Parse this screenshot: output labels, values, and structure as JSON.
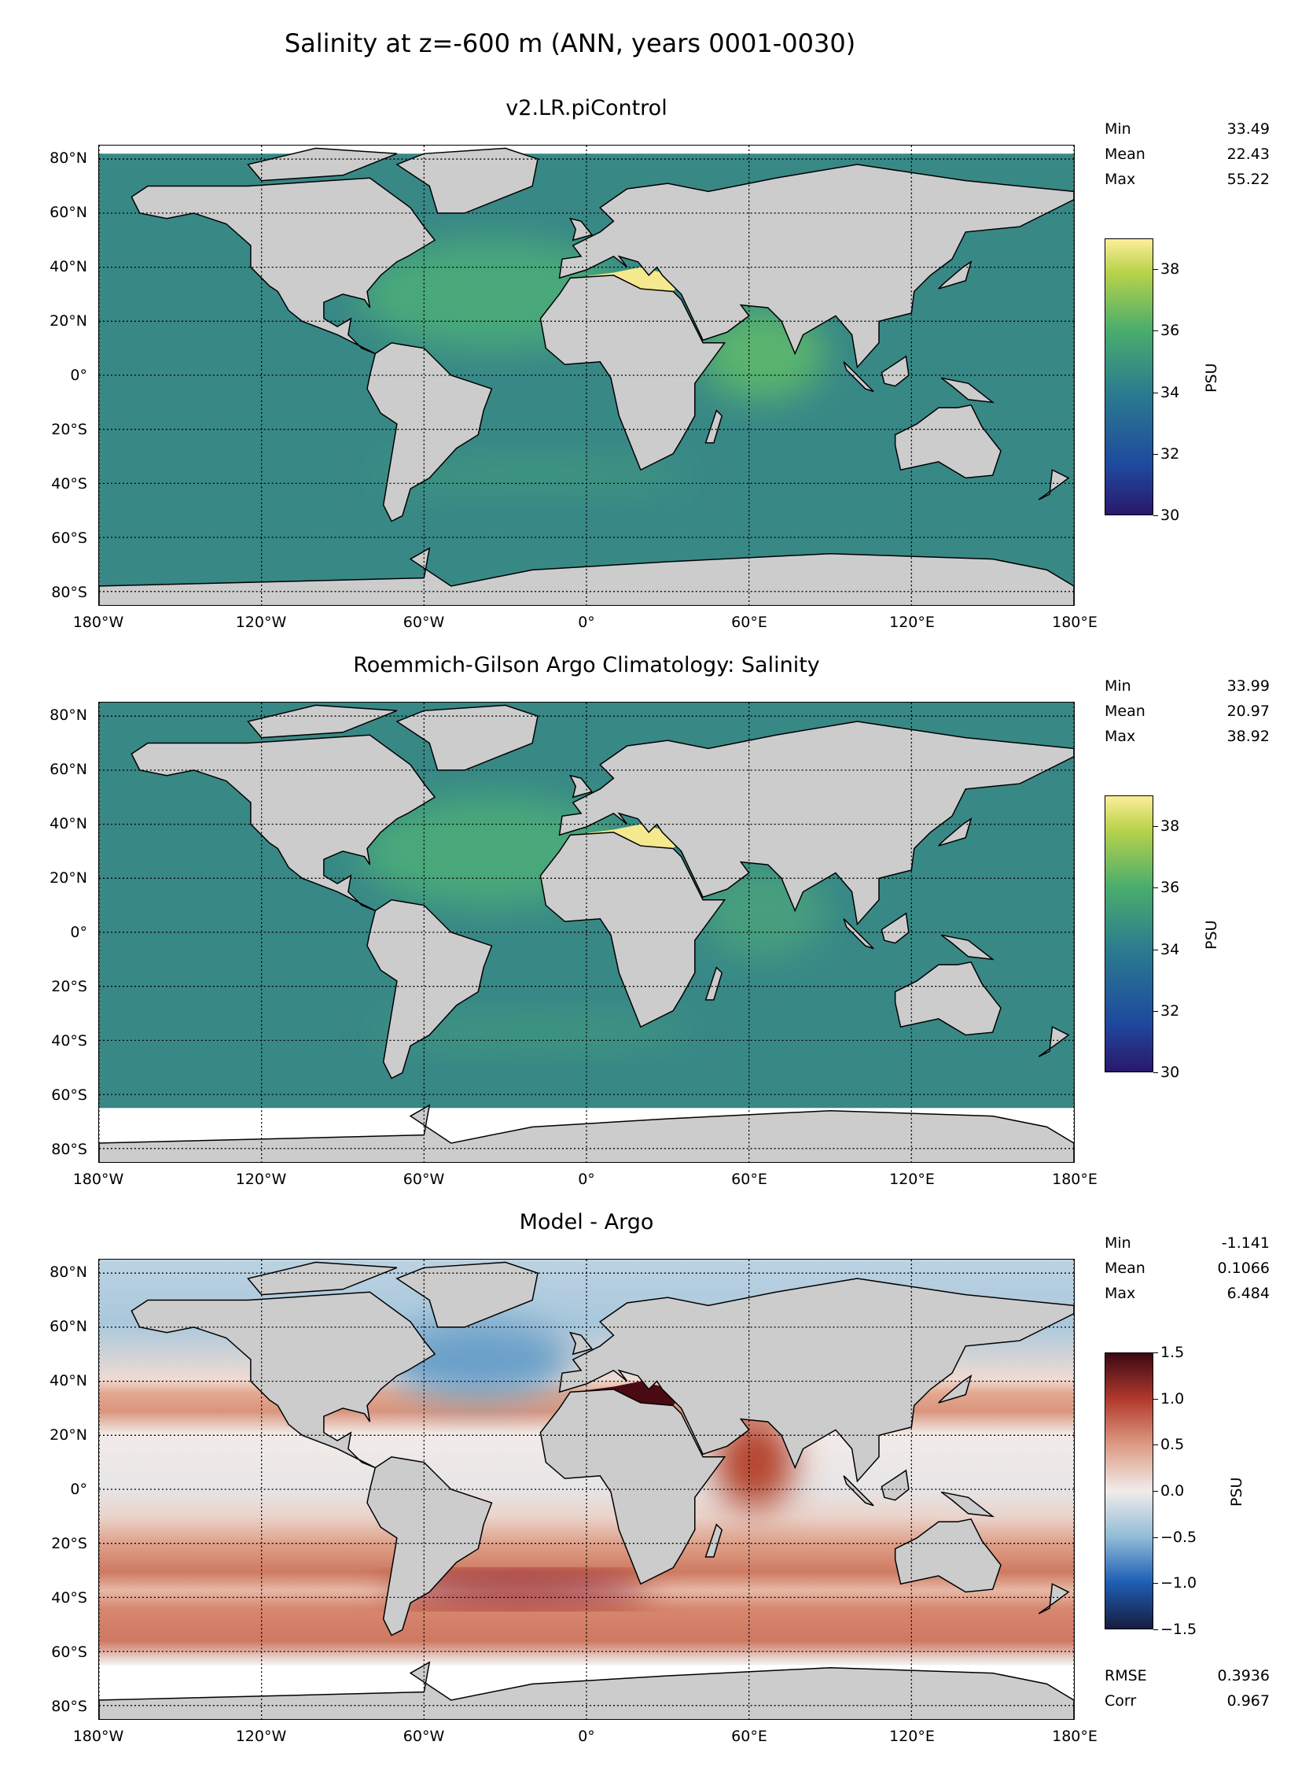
{
  "chart_data": {
    "type": "heatmap",
    "title": "Salinity at z=-600 m (ANN, years 0001-0030)",
    "x_ticks": [
      "180°W",
      "120°W",
      "60°W",
      "0°",
      "60°E",
      "120°E",
      "180°E"
    ],
    "x_tick_values": [
      -180,
      -120,
      -60,
      0,
      60,
      120,
      180
    ],
    "y_ticks": [
      "80°N",
      "60°N",
      "40°N",
      "20°N",
      "0°",
      "20°S",
      "40°S",
      "60°S",
      "80°S"
    ],
    "y_tick_values": [
      80,
      60,
      40,
      20,
      0,
      -20,
      -40,
      -60,
      -80
    ],
    "lat_range": [
      -85,
      85
    ],
    "lon_range": [
      -180,
      180
    ],
    "grid": true,
    "panels": [
      {
        "title": "v2.LR.piControl",
        "stats": [
          {
            "label": "Min",
            "value": "33.49"
          },
          {
            "label": "Mean",
            "value": "22.43"
          },
          {
            "label": "Max",
            "value": "55.22"
          }
        ],
        "colorbar": {
          "label": "PSU",
          "range": [
            30,
            39
          ],
          "ticks": [
            "30",
            "32",
            "34",
            "36",
            "38"
          ],
          "tick_values": [
            30,
            32,
            34,
            36,
            38
          ],
          "colormap": "haline"
        }
      },
      {
        "title": "Roemmich-Gilson Argo Climatology: Salinity",
        "stats": [
          {
            "label": "Min",
            "value": "33.99"
          },
          {
            "label": "Mean",
            "value": "20.97"
          },
          {
            "label": "Max",
            "value": "38.92"
          }
        ],
        "colorbar": {
          "label": "PSU",
          "range": [
            30,
            39
          ],
          "ticks": [
            "30",
            "32",
            "34",
            "36",
            "38"
          ],
          "tick_values": [
            30,
            32,
            34,
            36,
            38
          ],
          "colormap": "haline"
        }
      },
      {
        "title": "Model - Argo",
        "stats": [
          {
            "label": "Min",
            "value": "-1.141"
          },
          {
            "label": "Mean",
            "value": "0.1066"
          },
          {
            "label": "Max",
            "value": "6.484"
          }
        ],
        "colorbar": {
          "label": "PSU",
          "range": [
            -1.5,
            1.5
          ],
          "ticks": [
            "1.5",
            "1.0",
            "0.5",
            "0.0",
            "−0.5",
            "−1.0",
            "−1.5"
          ],
          "tick_values": [
            1.5,
            1.0,
            0.5,
            0.0,
            -0.5,
            -1.0,
            -1.5
          ],
          "colormap": "balance"
        },
        "extra_stats": [
          {
            "label": "RMSE",
            "value": "0.3936"
          },
          {
            "label": "Corr",
            "value": "0.967"
          }
        ]
      }
    ]
  }
}
